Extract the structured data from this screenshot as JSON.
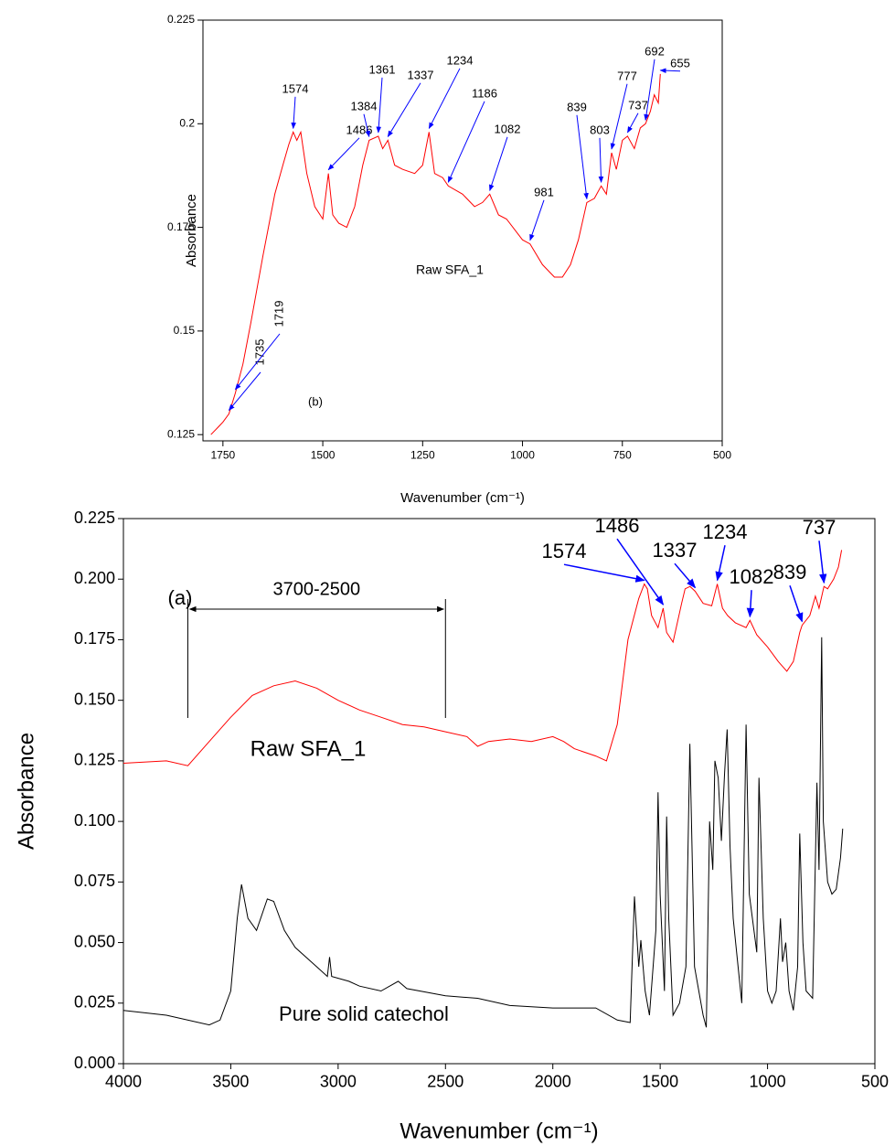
{
  "chart_data": [
    {
      "type": "line",
      "panel_label": "(b)",
      "xlabel": "Wavenumber (cm⁻¹)",
      "ylabel": "Absorbance",
      "xlim": [
        1800,
        500
      ],
      "ylim": [
        0.1235,
        0.225
      ],
      "xticks": [
        1750,
        1500,
        1250,
        1000,
        750,
        500
      ],
      "yticks": [
        0.125,
        0.15,
        0.175,
        0.2,
        0.225
      ],
      "series": [
        {
          "name": "Raw SFA_1",
          "color": "#ff0000",
          "x": [
            1780,
            1760,
            1750,
            1735,
            1719,
            1700,
            1680,
            1650,
            1620,
            1600,
            1585,
            1574,
            1565,
            1555,
            1540,
            1520,
            1500,
            1486,
            1475,
            1460,
            1440,
            1420,
            1400,
            1384,
            1361,
            1350,
            1337,
            1320,
            1300,
            1270,
            1250,
            1234,
            1220,
            1200,
            1186,
            1150,
            1120,
            1100,
            1082,
            1060,
            1040,
            1000,
            981,
            950,
            920,
            900,
            880,
            860,
            839,
            820,
            803,
            790,
            777,
            765,
            750,
            737,
            720,
            705,
            692,
            680,
            670,
            660,
            655
          ],
          "values": [
            0.125,
            0.127,
            0.128,
            0.13,
            0.135,
            0.142,
            0.152,
            0.168,
            0.183,
            0.19,
            0.195,
            0.198,
            0.196,
            0.198,
            0.188,
            0.18,
            0.177,
            0.188,
            0.178,
            0.176,
            0.175,
            0.18,
            0.19,
            0.196,
            0.197,
            0.194,
            0.196,
            0.19,
            0.189,
            0.188,
            0.19,
            0.198,
            0.188,
            0.187,
            0.185,
            0.183,
            0.18,
            0.181,
            0.183,
            0.178,
            0.177,
            0.172,
            0.171,
            0.166,
            0.163,
            0.163,
            0.166,
            0.172,
            0.181,
            0.182,
            0.185,
            0.183,
            0.193,
            0.189,
            0.196,
            0.197,
            0.194,
            0.199,
            0.2,
            0.203,
            0.207,
            0.205,
            0.212
          ]
        }
      ],
      "annotations": [
        {
          "text": "1735",
          "x": 1735
        },
        {
          "text": "1719",
          "x": 1719
        },
        {
          "text": "1574",
          "x": 1574
        },
        {
          "text": "1486",
          "x": 1486
        },
        {
          "text": "1384",
          "x": 1384
        },
        {
          "text": "1361",
          "x": 1361
        },
        {
          "text": "1337",
          "x": 1337
        },
        {
          "text": "1234",
          "x": 1234
        },
        {
          "text": "1186",
          "x": 1186
        },
        {
          "text": "1082",
          "x": 1082
        },
        {
          "text": "981",
          "x": 981
        },
        {
          "text": "839",
          "x": 839
        },
        {
          "text": "803",
          "x": 803
        },
        {
          "text": "777",
          "x": 777
        },
        {
          "text": "737",
          "x": 737
        },
        {
          "text": "692",
          "x": 692
        },
        {
          "text": "655",
          "x": 655
        }
      ]
    },
    {
      "type": "line",
      "panel_label": "(a)",
      "xlabel": "Wavenumber (cm⁻¹)",
      "ylabel": "Absorbance",
      "xlim": [
        4000,
        500
      ],
      "ylim": [
        0,
        0.225
      ],
      "xticks": [
        4000,
        3500,
        3000,
        2500,
        2000,
        1500,
        1000,
        500
      ],
      "yticks": [
        {
          "value": 0,
          "label": "0.000"
        },
        0.025,
        {
          "value": 0.05,
          "label": "0.050"
        },
        0.075,
        {
          "value": 0.1,
          "label": "0.100"
        },
        0.125,
        {
          "value": 0.15,
          "label": "0.150"
        },
        0.175,
        {
          "value": 0.2,
          "label": "0.200"
        },
        0.225
      ],
      "range_annotation": {
        "text": "3700-2500",
        "span": [
          3700,
          2500
        ]
      },
      "series": [
        {
          "name": "Raw SFA_1",
          "color": "#ff0000",
          "x": [
            4000,
            3800,
            3700,
            3600,
            3500,
            3400,
            3300,
            3200,
            3100,
            3000,
            2900,
            2800,
            2700,
            2600,
            2500,
            2400,
            2350,
            2300,
            2200,
            2100,
            2000,
            1950,
            1900,
            1800,
            1750,
            1700,
            1650,
            1600,
            1574,
            1560,
            1540,
            1510,
            1486,
            1470,
            1440,
            1400,
            1384,
            1361,
            1337,
            1300,
            1260,
            1234,
            1210,
            1186,
            1150,
            1100,
            1082,
            1050,
            1000,
            950,
            910,
            880,
            850,
            839,
            803,
            777,
            760,
            737,
            720,
            692,
            670,
            655
          ],
          "values": [
            0.124,
            0.125,
            0.123,
            0.133,
            0.143,
            0.152,
            0.156,
            0.158,
            0.155,
            0.15,
            0.146,
            0.143,
            0.14,
            0.139,
            0.137,
            0.135,
            0.131,
            0.133,
            0.134,
            0.133,
            0.135,
            0.133,
            0.13,
            0.127,
            0.125,
            0.14,
            0.175,
            0.192,
            0.198,
            0.196,
            0.185,
            0.18,
            0.188,
            0.178,
            0.174,
            0.19,
            0.196,
            0.197,
            0.195,
            0.19,
            0.189,
            0.198,
            0.188,
            0.185,
            0.182,
            0.18,
            0.183,
            0.177,
            0.172,
            0.166,
            0.162,
            0.166,
            0.178,
            0.181,
            0.185,
            0.193,
            0.188,
            0.197,
            0.196,
            0.2,
            0.205,
            0.212
          ]
        },
        {
          "name": "Pure solid catechol",
          "color": "#000000",
          "x": [
            4000,
            3800,
            3600,
            3550,
            3500,
            3470,
            3450,
            3420,
            3380,
            3330,
            3300,
            3250,
            3200,
            3100,
            3050,
            3040,
            3030,
            2950,
            2900,
            2800,
            2720,
            2680,
            2500,
            2350,
            2200,
            2000,
            1800,
            1700,
            1640,
            1620,
            1600,
            1590,
            1570,
            1550,
            1520,
            1510,
            1500,
            1480,
            1470,
            1460,
            1440,
            1410,
            1380,
            1362,
            1340,
            1300,
            1285,
            1270,
            1255,
            1245,
            1230,
            1215,
            1200,
            1188,
            1175,
            1160,
            1120,
            1100,
            1085,
            1050,
            1040,
            1020,
            1000,
            980,
            960,
            940,
            930,
            915,
            900,
            880,
            860,
            850,
            835,
            820,
            790,
            770,
            760,
            748,
            740,
            720,
            700,
            680,
            660,
            650
          ],
          "values": [
            0.022,
            0.02,
            0.016,
            0.018,
            0.03,
            0.06,
            0.074,
            0.06,
            0.055,
            0.068,
            0.067,
            0.055,
            0.048,
            0.04,
            0.036,
            0.044,
            0.036,
            0.034,
            0.032,
            0.03,
            0.034,
            0.031,
            0.028,
            0.027,
            0.024,
            0.023,
            0.023,
            0.018,
            0.017,
            0.069,
            0.04,
            0.051,
            0.03,
            0.02,
            0.055,
            0.112,
            0.07,
            0.03,
            0.102,
            0.06,
            0.02,
            0.025,
            0.04,
            0.132,
            0.04,
            0.02,
            0.015,
            0.1,
            0.08,
            0.125,
            0.118,
            0.092,
            0.12,
            0.138,
            0.09,
            0.06,
            0.025,
            0.14,
            0.07,
            0.046,
            0.118,
            0.06,
            0.03,
            0.025,
            0.03,
            0.06,
            0.042,
            0.05,
            0.03,
            0.022,
            0.04,
            0.095,
            0.05,
            0.03,
            0.027,
            0.116,
            0.08,
            0.176,
            0.1,
            0.075,
            0.07,
            0.072,
            0.085,
            0.097
          ]
        }
      ],
      "annotations": [
        {
          "text": "1574",
          "x": 1574
        },
        {
          "text": "1486",
          "x": 1486
        },
        {
          "text": "1337",
          "x": 1337
        },
        {
          "text": "1234",
          "x": 1234
        },
        {
          "text": "1082",
          "x": 1082
        },
        {
          "text": "839",
          "x": 839
        },
        {
          "text": "737",
          "x": 737
        }
      ]
    }
  ]
}
